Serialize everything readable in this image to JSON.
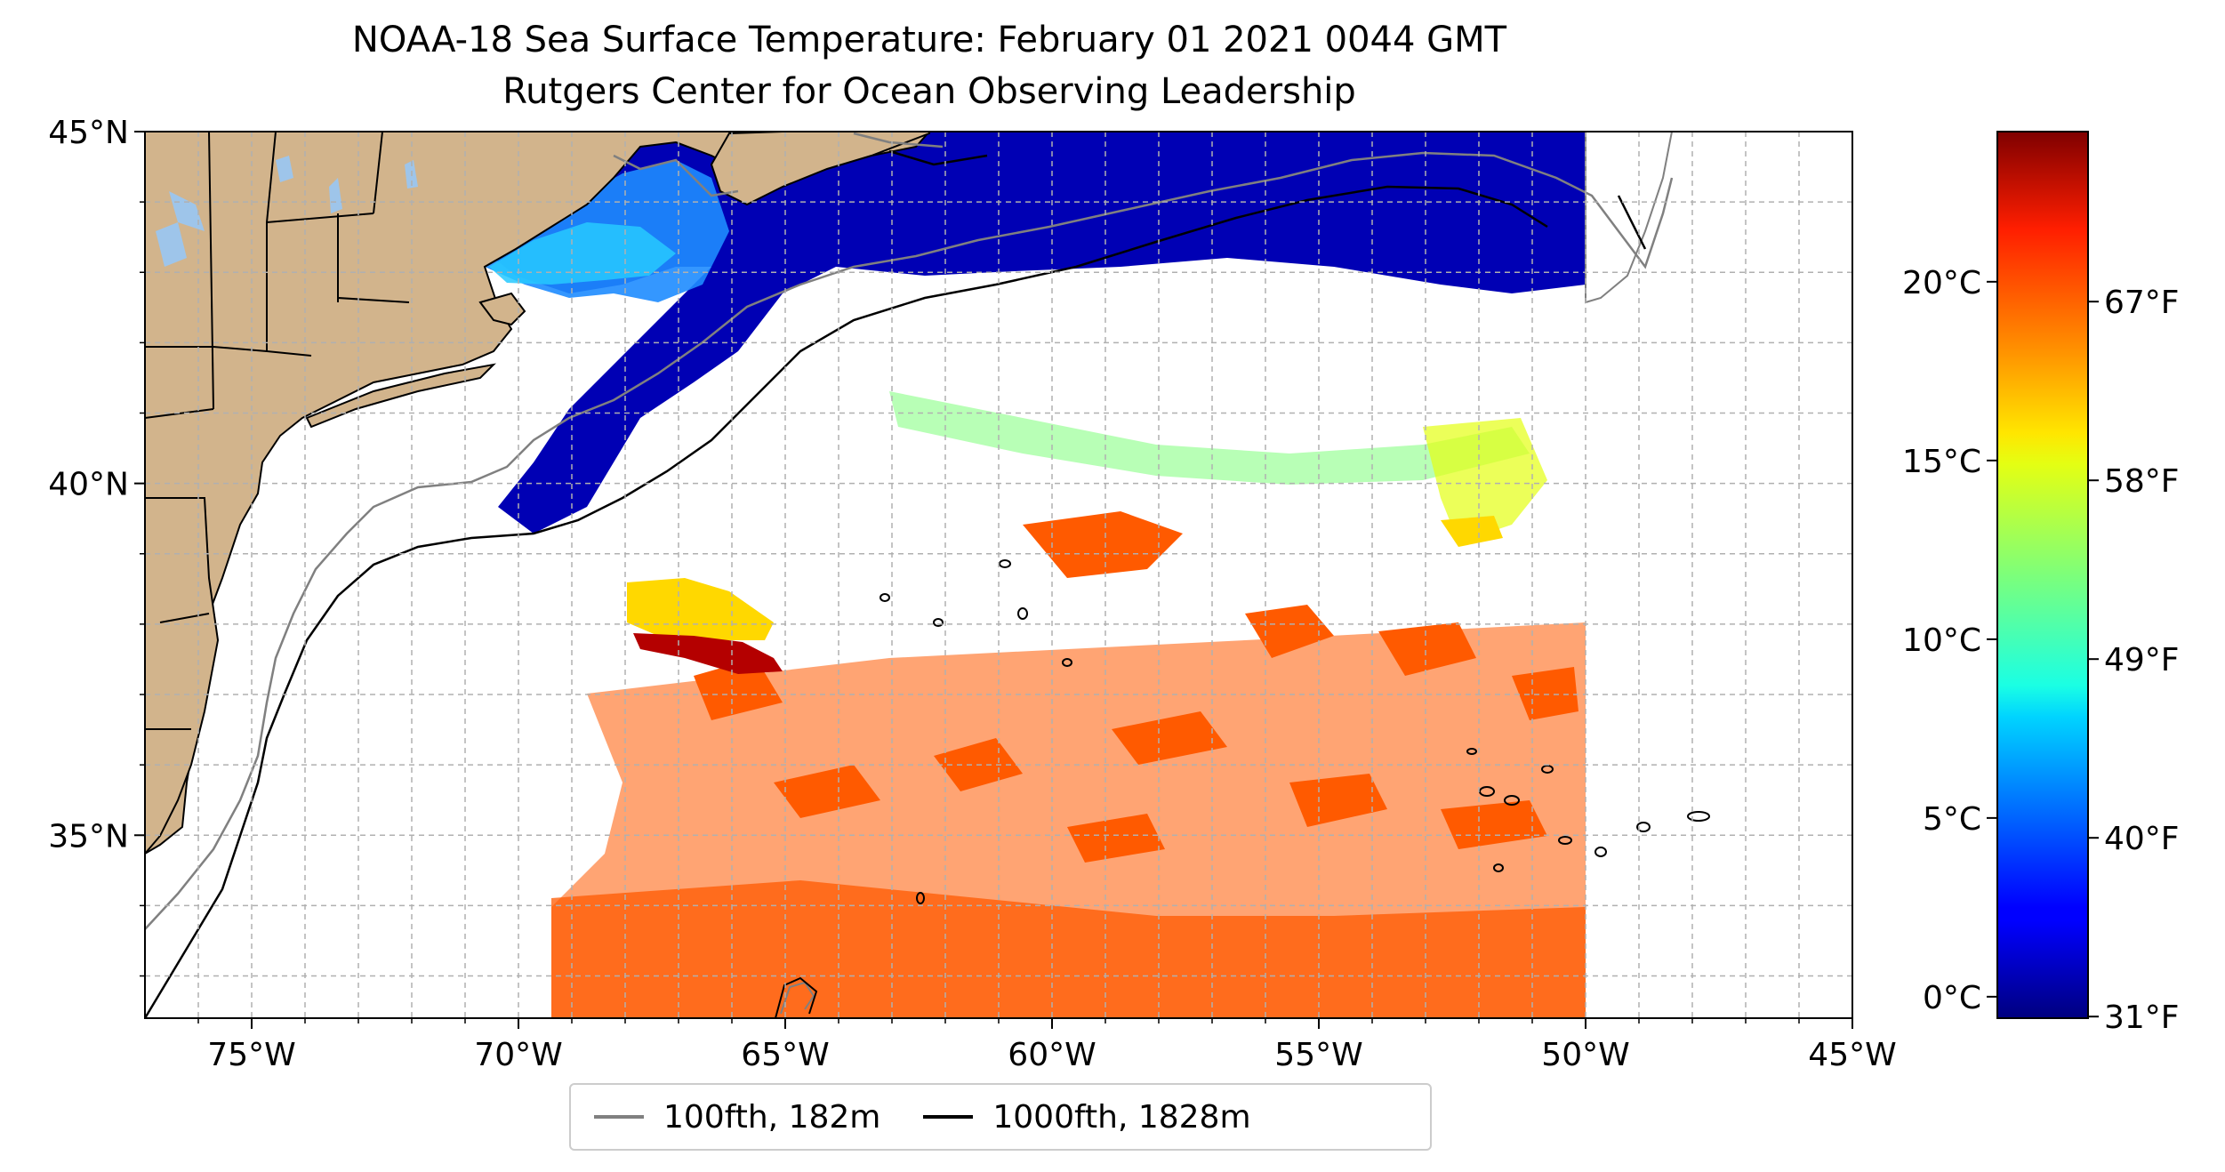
{
  "title": "NOAA-18 Sea Surface Temperature: February 01 2021 0044 GMT",
  "subtitle": "Rutgers Center for Ocean Observing Leadership",
  "map": {
    "extent_lon": [
      -77,
      -45
    ],
    "extent_lat": [
      32.4,
      45
    ],
    "lon_ticks": [
      {
        "value": -75,
        "label": "75°W"
      },
      {
        "value": -70,
        "label": "70°W"
      },
      {
        "value": -65,
        "label": "65°W"
      },
      {
        "value": -60,
        "label": "60°W"
      },
      {
        "value": -55,
        "label": "55°W"
      },
      {
        "value": -50,
        "label": "50°W"
      },
      {
        "value": -45,
        "label": "45°W"
      }
    ],
    "lat_ticks": [
      {
        "value": 45,
        "label": "45°N"
      },
      {
        "value": 40,
        "label": "40°N"
      },
      {
        "value": 35,
        "label": "35°N"
      }
    ],
    "gridlines": true,
    "data_coverage_east_lon": -50,
    "land_color": "#d2b48c",
    "lake_color": "#9ec5ea"
  },
  "colorbar": {
    "colormap": "jet",
    "celsius_ticks": [
      {
        "value": 0,
        "label": "0°C"
      },
      {
        "value": 5,
        "label": "5°C"
      },
      {
        "value": 10,
        "label": "10°C"
      },
      {
        "value": 15,
        "label": "15°C"
      },
      {
        "value": 20,
        "label": "20°C"
      }
    ],
    "fahrenheit_ticks": [
      {
        "value": 31,
        "label": "31°F"
      },
      {
        "value": 40,
        "label": "40°F"
      },
      {
        "value": 49,
        "label": "49°F"
      },
      {
        "value": 58,
        "label": "58°F"
      },
      {
        "value": 67,
        "label": "67°F"
      }
    ],
    "range_celsius": [
      -0.6,
      24.2
    ]
  },
  "legend": {
    "items": [
      {
        "label": "100fth, 182m",
        "color": "#808080"
      },
      {
        "label": "1000fth, 1828m",
        "color": "#000000"
      }
    ]
  }
}
